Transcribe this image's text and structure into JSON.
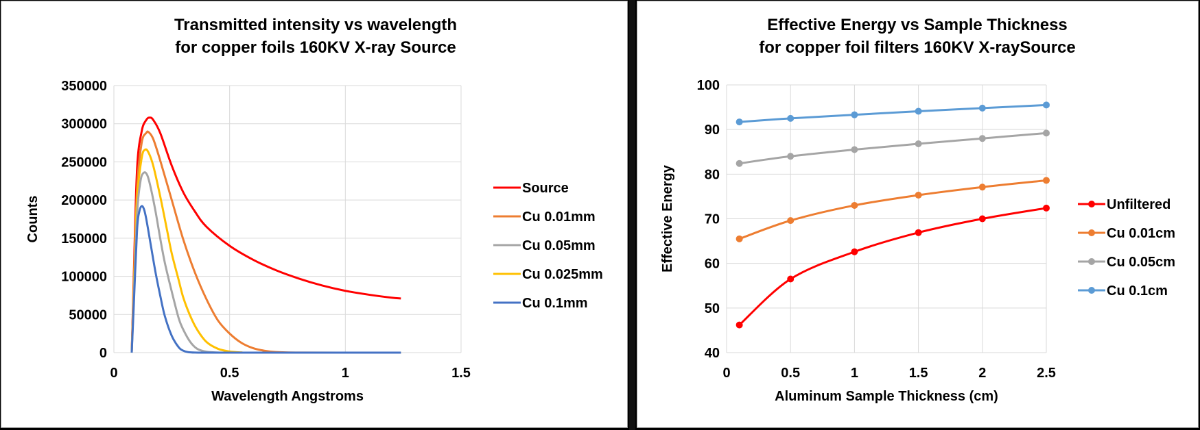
{
  "chart_data": [
    {
      "type": "line",
      "title": "Transmitted intensity vs wavelength",
      "subtitle": "for copper foils 160KV X-ray Source",
      "xlabel": "Wavelength Angstroms",
      "ylabel": "Counts",
      "xlim": [
        0,
        1.5
      ],
      "ylim": [
        0,
        350000
      ],
      "xticks": [
        "0",
        "0.5",
        "1",
        "1.5"
      ],
      "yticks": [
        "0",
        "50000",
        "100000",
        "150000",
        "200000",
        "250000",
        "300000",
        "350000"
      ],
      "grid": true,
      "legend_position": "right",
      "series": [
        {
          "name": "Source",
          "color": "#ff0000",
          "x": [
            0.077,
            0.085,
            0.1,
            0.12,
            0.14,
            0.155,
            0.17,
            0.2,
            0.25,
            0.3,
            0.35,
            0.4,
            0.5,
            0.6,
            0.7,
            0.8,
            0.9,
            1.0,
            1.1,
            1.2,
            1.24
          ],
          "y": [
            0,
            90000,
            240000,
            290000,
            305000,
            308000,
            305000,
            288000,
            245000,
            210000,
            185000,
            165000,
            140000,
            122000,
            108000,
            97000,
            88000,
            81000,
            76000,
            72000,
            71000
          ]
        },
        {
          "name": "Cu 0.01mm",
          "color": "#ed7d31",
          "x": [
            0.077,
            0.085,
            0.1,
            0.12,
            0.14,
            0.15,
            0.17,
            0.2,
            0.25,
            0.3,
            0.35,
            0.4,
            0.45,
            0.5,
            0.55,
            0.6,
            0.65,
            0.7,
            0.8,
            1.0,
            1.24
          ],
          "y": [
            0,
            80000,
            215000,
            275000,
            288000,
            289000,
            280000,
            252000,
            200000,
            148000,
            105000,
            70000,
            42000,
            25000,
            13000,
            6000,
            2500,
            800,
            100,
            0,
            0
          ]
        },
        {
          "name": "Cu 0.05mm",
          "color": "#a5a5a5",
          "x": [
            0.077,
            0.085,
            0.1,
            0.115,
            0.13,
            0.145,
            0.16,
            0.18,
            0.2,
            0.22,
            0.25,
            0.28,
            0.3,
            0.33,
            0.36,
            0.4,
            0.45,
            0.5,
            0.6,
            1.0,
            1.24
          ],
          "y": [
            0,
            65000,
            180000,
            225000,
            236000,
            232000,
            215000,
            185000,
            150000,
            118000,
            80000,
            45000,
            30000,
            14000,
            5000,
            1200,
            150,
            0,
            0,
            0,
            0
          ]
        },
        {
          "name": "Cu 0.025mm",
          "color": "#ffc000",
          "x": [
            0.077,
            0.085,
            0.1,
            0.12,
            0.135,
            0.15,
            0.17,
            0.2,
            0.23,
            0.25,
            0.28,
            0.3,
            0.33,
            0.36,
            0.4,
            0.45,
            0.5,
            0.55,
            0.6,
            1.0,
            1.24
          ],
          "y": [
            0,
            75000,
            200000,
            255000,
            266000,
            262000,
            245000,
            205000,
            160000,
            130000,
            95000,
            72000,
            48000,
            30000,
            14000,
            5000,
            1500,
            300,
            0,
            0,
            0
          ]
        },
        {
          "name": "Cu 0.1mm",
          "color": "#4472c4",
          "x": [
            0.077,
            0.085,
            0.1,
            0.11,
            0.12,
            0.13,
            0.14,
            0.16,
            0.18,
            0.2,
            0.22,
            0.25,
            0.28,
            0.3,
            0.32,
            0.35,
            0.4,
            0.5,
            1.0,
            1.24
          ],
          "y": [
            0,
            55000,
            160000,
            185000,
            192000,
            188000,
            175000,
            140000,
            105000,
            75000,
            48000,
            22000,
            7000,
            2500,
            700,
            100,
            0,
            0,
            0,
            0
          ]
        }
      ]
    },
    {
      "type": "line",
      "title": "Effective Energy vs Sample Thickness",
      "subtitle": "for copper foil filters 160KV X-raySource",
      "xlabel": "Aluminum  Sample Thickness (cm)",
      "ylabel": "Effective Energy",
      "xlim": [
        0,
        2.5
      ],
      "ylim": [
        40,
        100
      ],
      "xticks": [
        "0",
        "0.5",
        "1",
        "1.5",
        "2",
        "2.5"
      ],
      "yticks": [
        "40",
        "50",
        "60",
        "70",
        "80",
        "90",
        "100"
      ],
      "grid": true,
      "legend_position": "right",
      "markers": true,
      "series": [
        {
          "name": "Unfiltered",
          "color": "#ff0000",
          "x": [
            0.1,
            0.5,
            1,
            1.5,
            2,
            2.5
          ],
          "y": [
            46.2,
            56.5,
            62.6,
            66.9,
            70.0,
            72.4
          ]
        },
        {
          "name": "Cu 0.01cm",
          "color": "#ed7d31",
          "x": [
            0.1,
            0.5,
            1,
            1.5,
            2,
            2.5
          ],
          "y": [
            65.5,
            69.6,
            73.0,
            75.3,
            77.1,
            78.6
          ]
        },
        {
          "name": "Cu 0.05cm",
          "color": "#a5a5a5",
          "x": [
            0.1,
            0.5,
            1,
            1.5,
            2,
            2.5
          ],
          "y": [
            82.4,
            84.0,
            85.5,
            86.8,
            88.0,
            89.2
          ]
        },
        {
          "name": "Cu 0.1cm",
          "color": "#5b9bd5",
          "x": [
            0.1,
            0.5,
            1,
            1.5,
            2,
            2.5
          ],
          "y": [
            91.7,
            92.5,
            93.3,
            94.1,
            94.8,
            95.5
          ]
        }
      ]
    }
  ]
}
